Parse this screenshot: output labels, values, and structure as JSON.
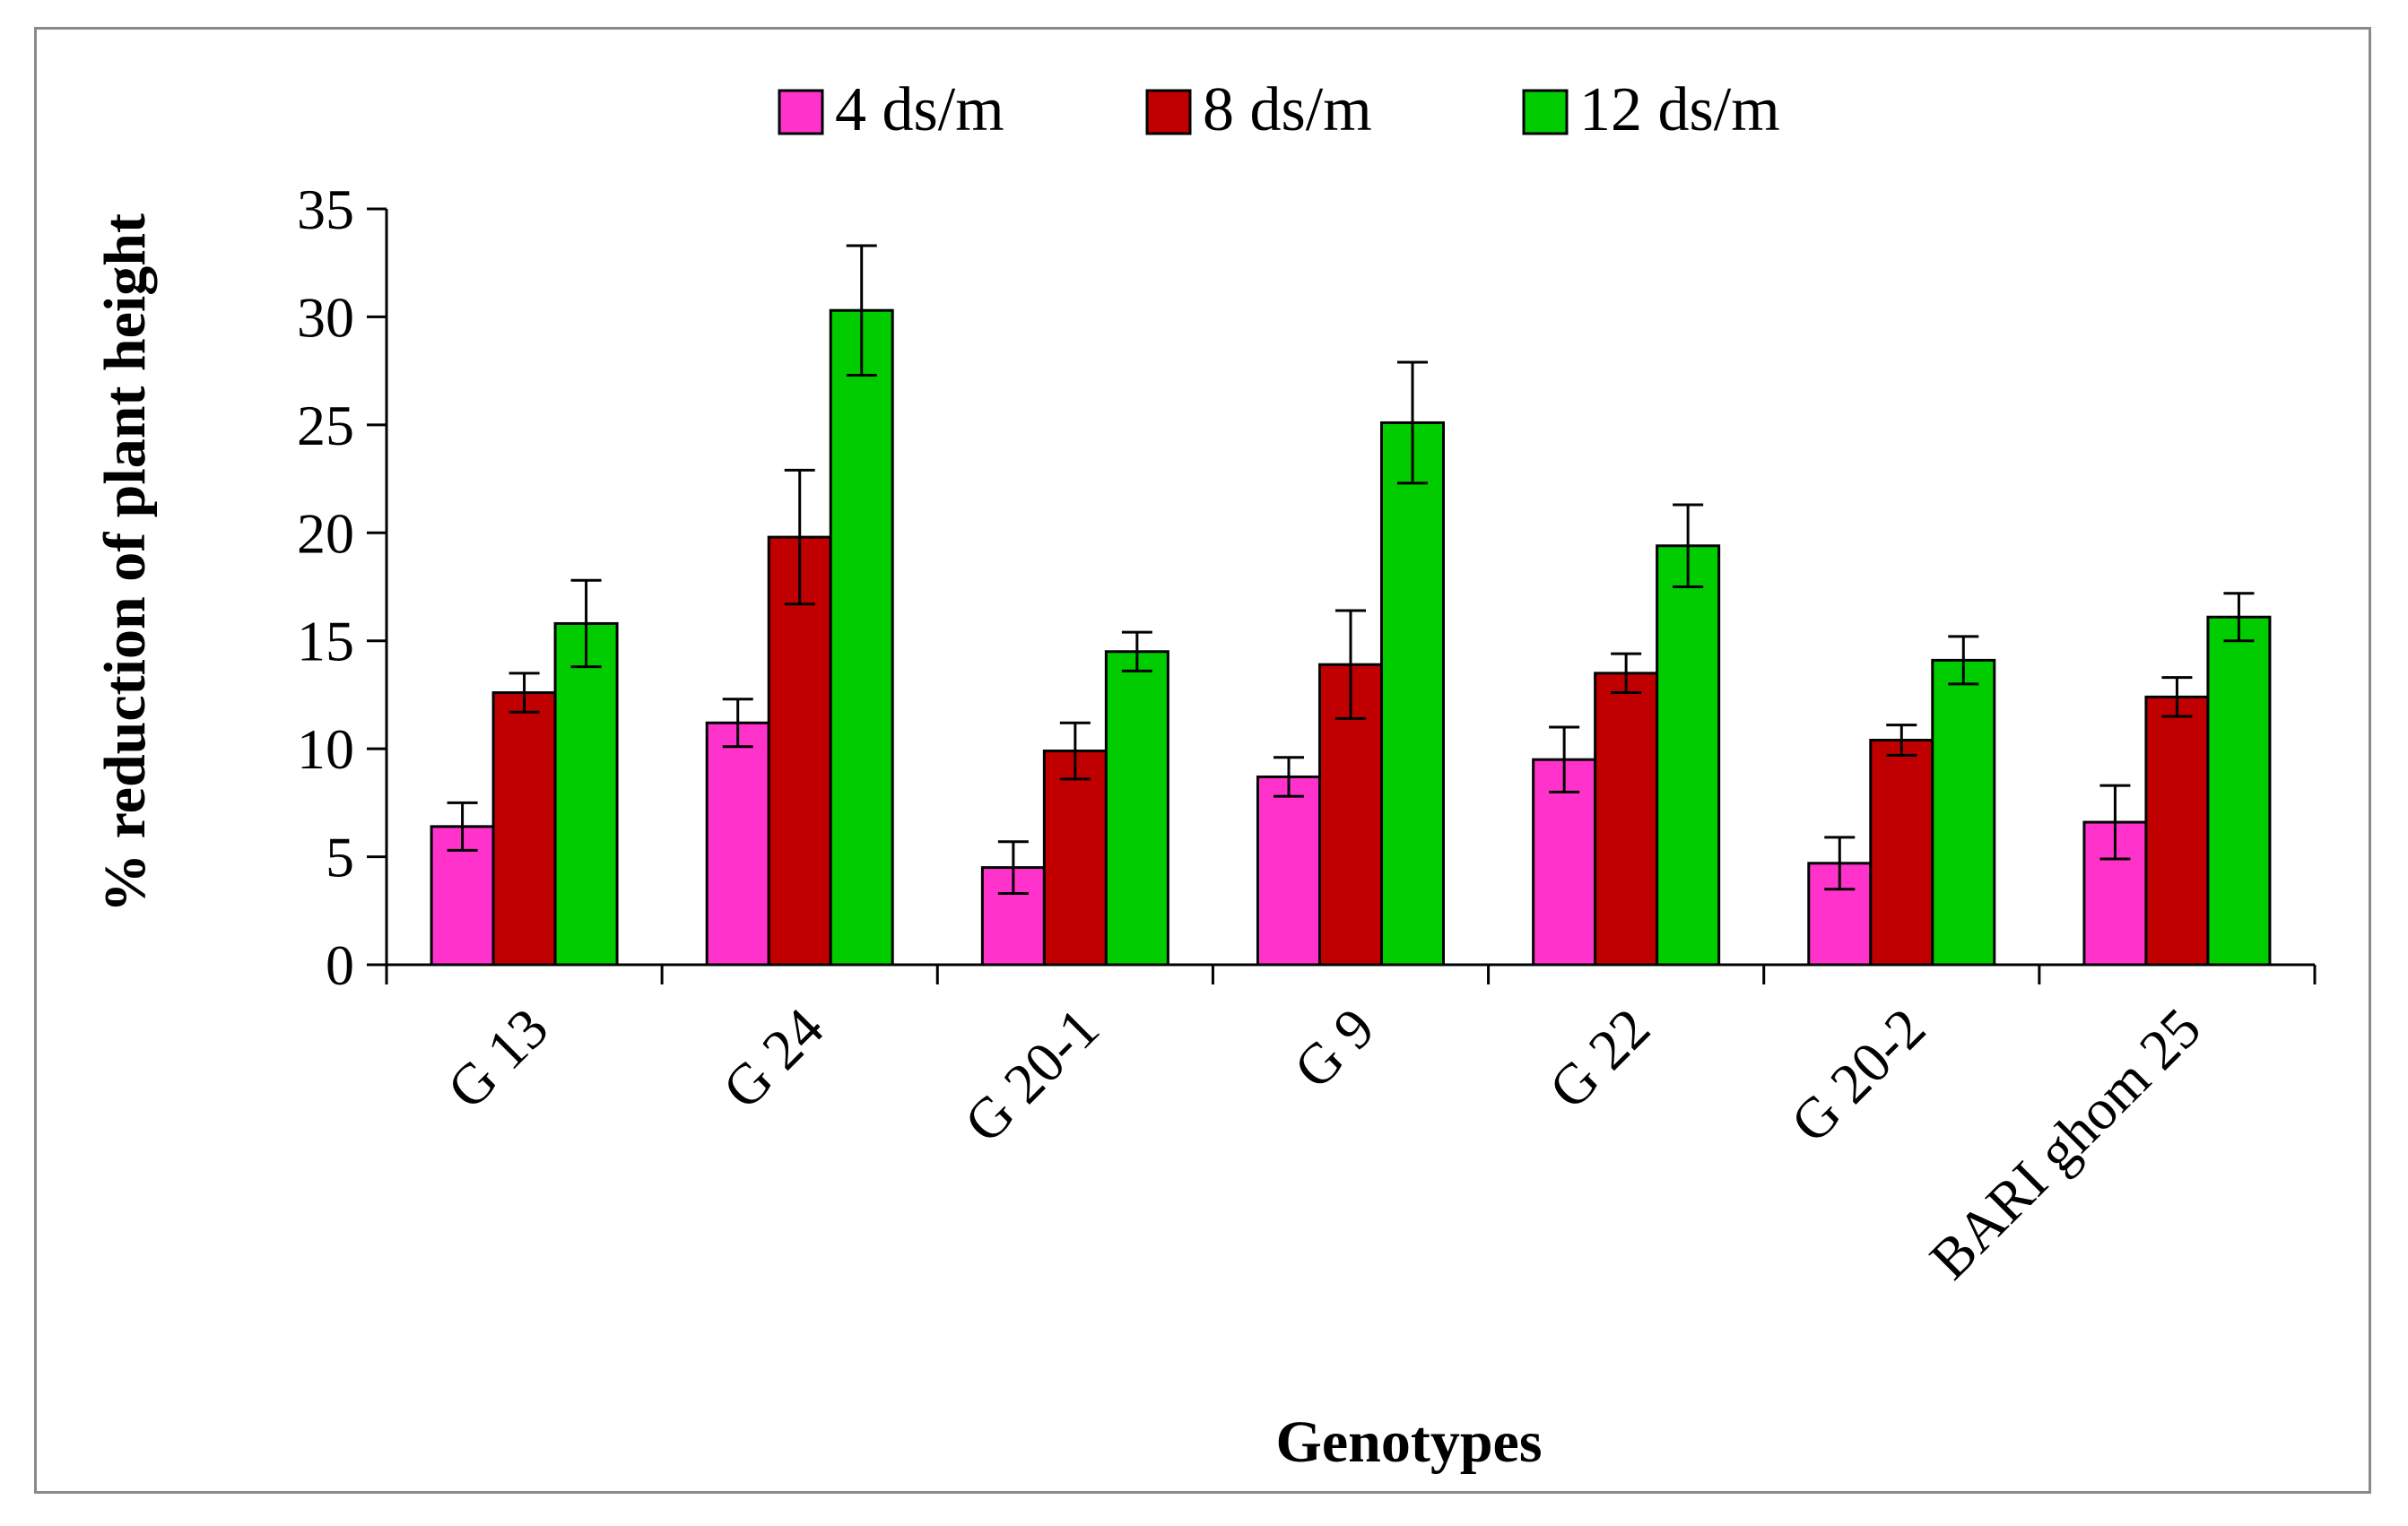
{
  "chart_data": {
    "type": "bar",
    "title": "",
    "xlabel": "Genotypes",
    "ylabel": "% reduction of plant height",
    "ylim": [
      0,
      35
    ],
    "yticks": [
      0,
      5,
      10,
      15,
      20,
      25,
      30,
      35
    ],
    "grid": false,
    "legend_position": "top",
    "categories": [
      "G 13",
      "G 24",
      "G 20-1",
      "G 9",
      "G 22",
      "G 20-2",
      "BARI ghom 25"
    ],
    "series": [
      {
        "name": "4 ds/m",
        "color": "#ff33cc",
        "values": [
          6.4,
          11.2,
          4.5,
          8.7,
          9.5,
          4.7,
          6.6
        ],
        "errors": [
          1.1,
          1.1,
          1.2,
          0.9,
          1.5,
          1.2,
          1.7
        ]
      },
      {
        "name": "8 ds/m",
        "color": "#c00000",
        "values": [
          12.6,
          19.8,
          9.9,
          13.9,
          13.5,
          10.4,
          12.4
        ],
        "errors": [
          0.9,
          3.1,
          1.3,
          2.5,
          0.9,
          0.7,
          0.9
        ]
      },
      {
        "name": "12 ds/m",
        "color": "#00cc00",
        "values": [
          15.8,
          30.3,
          14.5,
          25.1,
          19.4,
          14.1,
          16.1
        ],
        "errors": [
          2.0,
          3.0,
          0.9,
          2.8,
          1.9,
          1.1,
          1.1
        ]
      }
    ]
  }
}
